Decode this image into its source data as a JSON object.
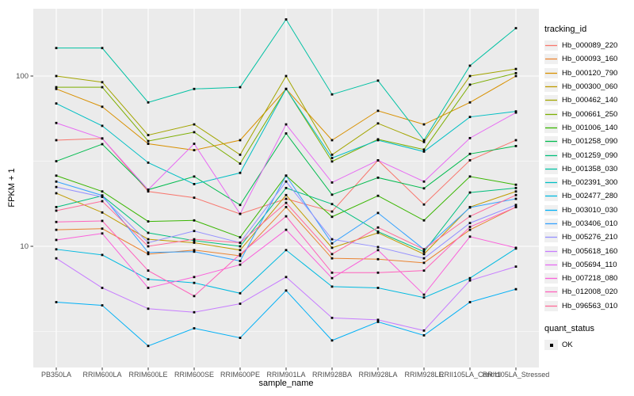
{
  "chart_data": {
    "type": "line",
    "xlabel": "sample_name",
    "ylabel": "FPKM + 1",
    "y_scale": "log10",
    "y_ticks": [
      100,
      10
    ],
    "y_minor_breaks": [
      31.62,
      3.162
    ],
    "ylim": [
      2.0,
      252
    ],
    "grid": "on",
    "panel_bg": "#EBEBEB",
    "grid_color": "#FFFFFF",
    "tick_label_color": "#4D4D4D",
    "marker": "black-square",
    "legend_position": "right",
    "categories": [
      "PB350LA",
      "RRIM600LA",
      "RRIM600LE",
      "RRIM600SE",
      "RRIM600PE",
      "RRIM901LA",
      "RRIM928BA",
      "RRIM928LA",
      "RRIM928LE",
      "RRII105LA_Control",
      "RRII105LA_Stressed"
    ],
    "legend": {
      "title": "tracking_id",
      "quant_title": "quant_status",
      "quant_items": [
        {
          "label": "OK"
        }
      ]
    },
    "series": [
      {
        "name": "Hb_000089_220",
        "color": "#F8766D",
        "values": [
          42,
          43,
          21,
          19.3,
          15.5,
          19,
          16,
          32,
          17.6,
          32,
          42
        ]
      },
      {
        "name": "Hb_000093_160",
        "color": "#EA8331",
        "values": [
          12.5,
          12.7,
          9,
          9.5,
          8.8,
          17,
          8.5,
          8.4,
          8,
          12.5,
          17
        ]
      },
      {
        "name": "Hb_000120_790",
        "color": "#D89000",
        "values": [
          84,
          66,
          40,
          36.7,
          42,
          84,
          42,
          62.5,
          52,
          70,
          100
        ]
      },
      {
        "name": "Hb_000300_060",
        "color": "#C09B00",
        "values": [
          20.5,
          15.8,
          11,
          10.5,
          9.5,
          20,
          9.8,
          12,
          9,
          17,
          21
        ]
      },
      {
        "name": "Hb_000462_140",
        "color": "#A3A500",
        "values": [
          100,
          92,
          45,
          52,
          34.5,
          100,
          34.5,
          52.7,
          41,
          100,
          110
        ]
      },
      {
        "name": "Hb_000661_250",
        "color": "#7CAE00",
        "values": [
          86,
          86,
          41.5,
          46.8,
          30.6,
          84,
          31.5,
          42.5,
          37,
          89,
          104
        ]
      },
      {
        "name": "Hb_001006_140",
        "color": "#39B600",
        "values": [
          26,
          21,
          14,
          14.2,
          11.3,
          26,
          14.9,
          19.8,
          14.2,
          25.7,
          23
        ]
      },
      {
        "name": "Hb_001258_090",
        "color": "#00BB4E",
        "values": [
          31.6,
          39.8,
          21.5,
          25.7,
          17.5,
          46,
          20.1,
          25.3,
          21.9,
          34.9,
          38.8
        ]
      },
      {
        "name": "Hb_001259_090",
        "color": "#00BF7D",
        "values": [
          17,
          19.8,
          12,
          10.8,
          10,
          22,
          17.7,
          12.2,
          9.3,
          20.7,
          22
        ]
      },
      {
        "name": "Hb_001358_030",
        "color": "#00C1A3",
        "values": [
          146,
          146,
          70,
          84,
          86,
          215,
          78,
          94,
          42,
          115,
          191
        ]
      },
      {
        "name": "Hb_002391_300",
        "color": "#00BFC4",
        "values": [
          69,
          51,
          31,
          23.2,
          27,
          84,
          33,
          42,
          36,
          57.5,
          62
        ]
      },
      {
        "name": "Hb_002477_280",
        "color": "#00BAE0",
        "values": [
          9.6,
          8.9,
          6.4,
          6.1,
          5.3,
          9.5,
          5.8,
          5.7,
          5.0,
          6.5,
          9.7
        ]
      },
      {
        "name": "Hb_003010_030",
        "color": "#00B0F6",
        "values": [
          4.7,
          4.5,
          2.6,
          3.3,
          2.9,
          5.5,
          2.8,
          3.6,
          3.0,
          4.7,
          5.6
        ]
      },
      {
        "name": "Hb_003406_010",
        "color": "#35A2FF",
        "values": [
          24,
          19.9,
          9.2,
          9.3,
          8.2,
          26,
          10.4,
          15.7,
          9.6,
          16.9,
          19
        ]
      },
      {
        "name": "Hb_005276_210",
        "color": "#9590FF",
        "values": [
          22.3,
          19.5,
          10.5,
          12.3,
          10.5,
          24,
          11,
          9.9,
          8.5,
          13.7,
          17.5
        ]
      },
      {
        "name": "Hb_005618_160",
        "color": "#C77CFF",
        "values": [
          8.5,
          5.7,
          4.3,
          4.1,
          4.6,
          6.6,
          3.8,
          3.7,
          3.2,
          6.3,
          7.6
        ]
      },
      {
        "name": "Hb_005694_110",
        "color": "#E76BF3",
        "values": [
          53,
          43,
          21.5,
          40,
          15.5,
          52,
          23.7,
          32,
          24,
          43.2,
          61
        ]
      },
      {
        "name": "Hb_007218_080",
        "color": "#FA62DB",
        "values": [
          10.9,
          11.9,
          5.7,
          6.6,
          7.8,
          12.5,
          6.5,
          9.5,
          5.2,
          11.4,
          9.8
        ]
      },
      {
        "name": "Hb_012008_020",
        "color": "#FF62BC",
        "values": [
          13.9,
          14.1,
          7.2,
          5.1,
          9,
          15,
          7,
          7,
          7.2,
          13,
          17
        ]
      },
      {
        "name": "Hb_096563_010",
        "color": "#FF6A98",
        "values": [
          16.2,
          18.4,
          10,
          11,
          10.5,
          18,
          9,
          12.9,
          9.6,
          15,
          20
        ]
      }
    ]
  }
}
